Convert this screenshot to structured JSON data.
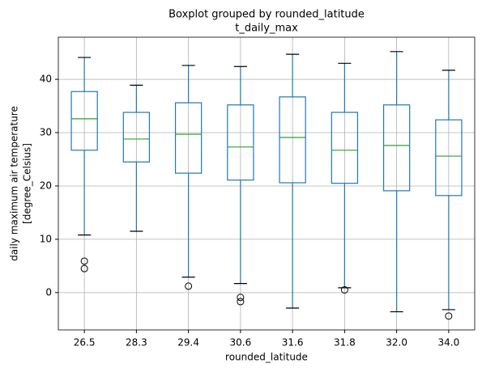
{
  "chart_data": {
    "type": "box",
    "suptitle": "Boxplot grouped by rounded_latitude",
    "title": "t_daily_max",
    "xlabel": "rounded_latitude",
    "ylabel": [
      "daily maximum air temperature",
      "[degree_Celsius]"
    ],
    "categories": [
      "26.5",
      "28.3",
      "29.4",
      "30.6",
      "31.6",
      "31.8",
      "32.0",
      "34.0"
    ],
    "boxes": [
      {
        "whisker_low": 10.8,
        "q1": 26.7,
        "median": 32.6,
        "q3": 37.7,
        "whisker_high": 44.1,
        "outliers": [
          5.9,
          4.5
        ]
      },
      {
        "whisker_low": 11.5,
        "q1": 24.5,
        "median": 28.8,
        "q3": 33.8,
        "whisker_high": 38.9,
        "outliers": []
      },
      {
        "whisker_low": 2.9,
        "q1": 22.4,
        "median": 29.7,
        "q3": 35.6,
        "whisker_high": 42.6,
        "outliers": [
          1.2
        ]
      },
      {
        "whisker_low": 1.7,
        "q1": 21.1,
        "median": 27.3,
        "q3": 35.2,
        "whisker_high": 42.4,
        "outliers": [
          -0.9,
          -1.7
        ]
      },
      {
        "whisker_low": -2.9,
        "q1": 20.6,
        "median": 29.1,
        "q3": 36.7,
        "whisker_high": 44.7,
        "outliers": []
      },
      {
        "whisker_low": 0.9,
        "q1": 20.5,
        "median": 26.7,
        "q3": 33.8,
        "whisker_high": 43.0,
        "outliers": [
          0.5
        ]
      },
      {
        "whisker_low": -3.6,
        "q1": 19.1,
        "median": 27.6,
        "q3": 35.2,
        "whisker_high": 45.2,
        "outliers": []
      },
      {
        "whisker_low": -3.2,
        "q1": 18.2,
        "median": 25.6,
        "q3": 32.4,
        "whisker_high": 41.7,
        "outliers": [
          -4.4
        ]
      }
    ],
    "color": "#1f77b4",
    "median_color": "#2ca02c",
    "ylim": [
      -7,
      47.9
    ],
    "yticks": [
      0,
      10,
      20,
      30,
      40
    ],
    "grid": true
  }
}
